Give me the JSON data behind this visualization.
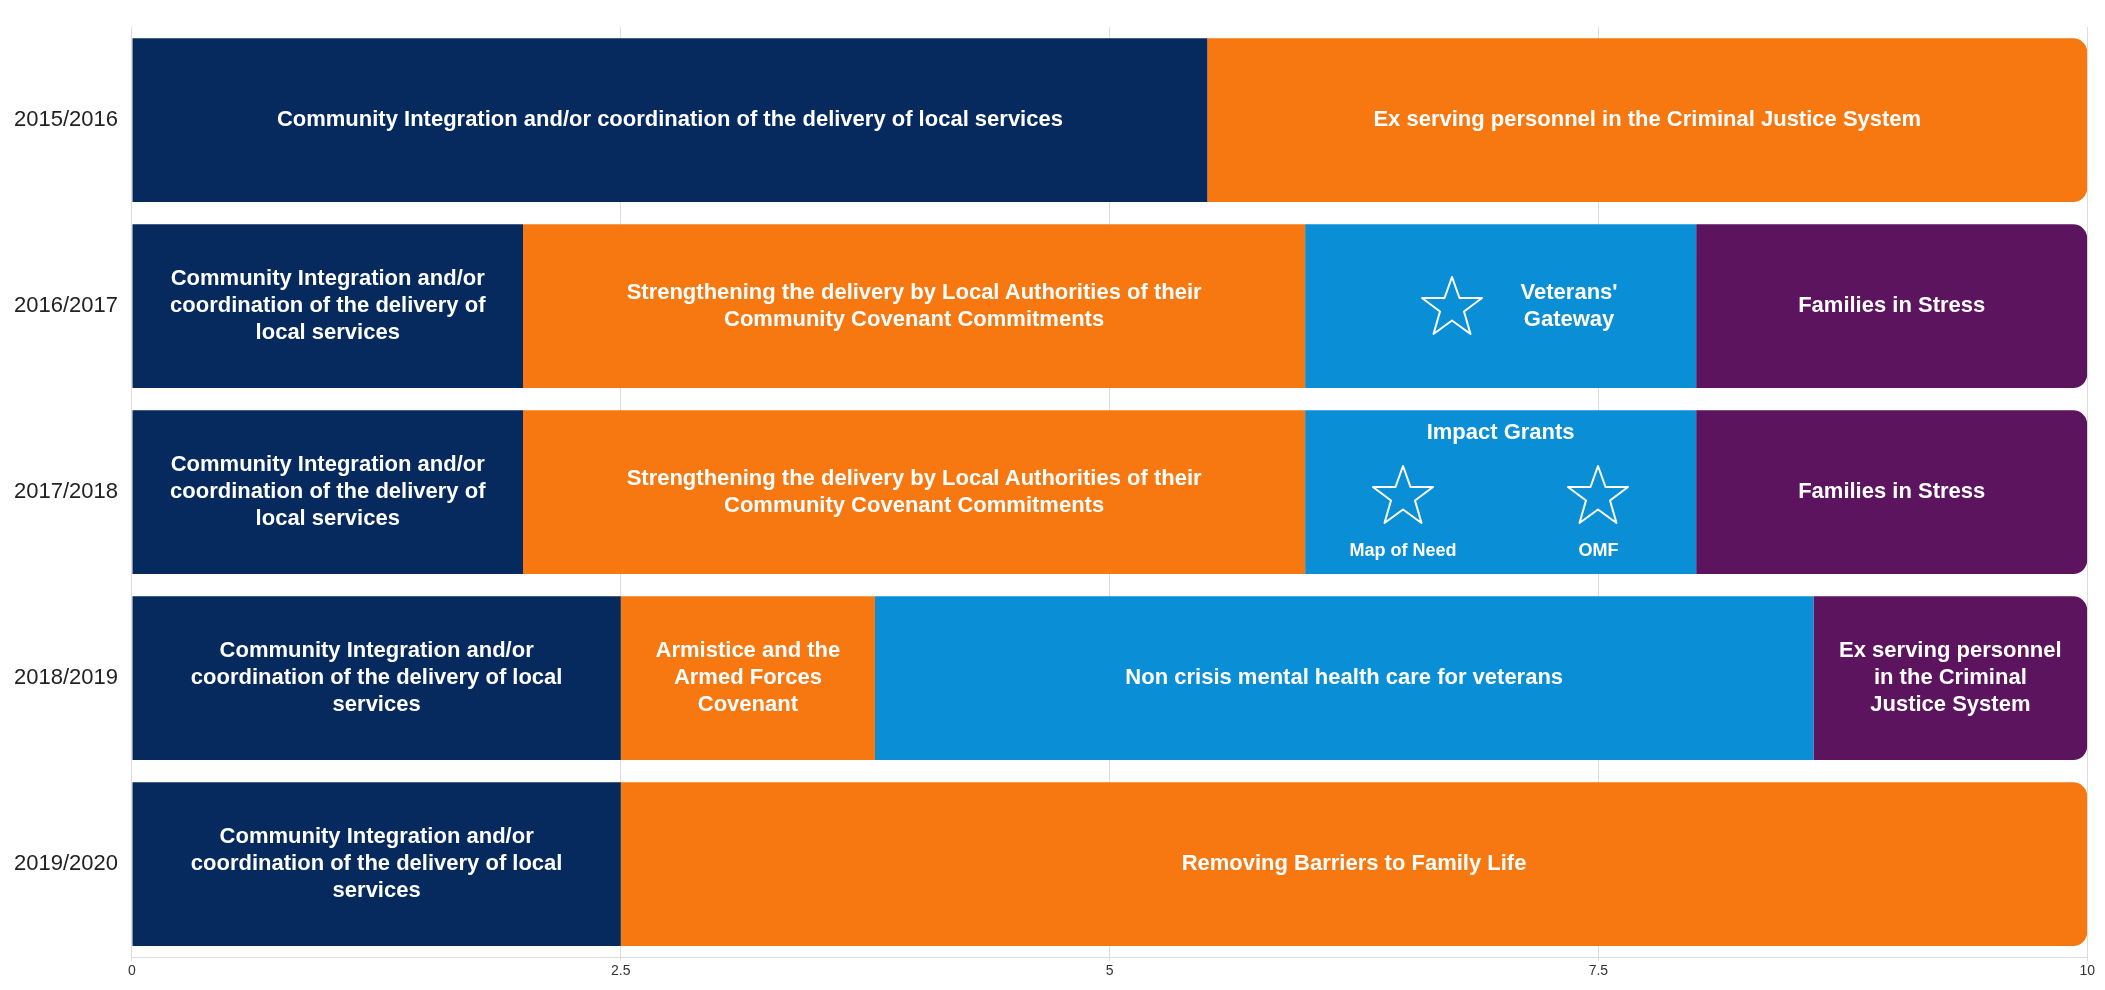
{
  "chart_data": {
    "type": "bar",
    "orientation": "horizontal",
    "stacked": true,
    "categories": [
      "2015/2016",
      "2016/2017",
      "2017/2018",
      "2018/2019",
      "2019/2020"
    ],
    "series": [
      {
        "color": "#062a5e",
        "values": [
          5.5,
          2,
          2,
          2.5,
          2.5
        ],
        "value_labels": [
          "Community Integration and/or coordination of the delivery of local services",
          "Community Integration and/or coordination of the delivery of local services",
          "Community Integration and/or coordination of the delivery of local services",
          "Community Integration and/or coordination of the delivery of local services",
          "Community Integration and/or coordination of the delivery of local services"
        ]
      },
      {
        "color": "#f77810",
        "values": [
          4.5,
          4,
          4,
          1.3,
          7.5
        ],
        "value_labels": [
          "Ex serving personnel in the Criminal Justice System",
          "Strengthening the delivery by Local Authorities of their Community Covenant Commitments",
          "Strengthening the delivery by Local Authorities of their Community Covenant Commitments",
          "Armistice and the Armed Forces Covenant",
          "Removing Barriers to Family Life"
        ]
      },
      {
        "color": "#0a8ed6",
        "values": [
          null,
          2,
          2,
          4.8,
          null
        ],
        "value_labels": [
          null,
          null,
          null,
          "Non crisis mental health care for veterans",
          null
        ]
      },
      {
        "color": "#5c145e",
        "values": [
          null,
          2,
          2,
          1.4,
          null
        ],
        "value_labels": [
          null,
          "Families in Stress",
          "Families in Stress",
          "Ex serving personnel in the Criminal Justice System",
          null
        ]
      }
    ],
    "annotations": [
      "Veterans' Gateway",
      "Impact Grants",
      "Map of Need",
      "OMF"
    ],
    "xlim": [
      0,
      10
    ],
    "xticks": [
      0,
      2.5,
      5,
      7.5,
      10
    ],
    "grid": "x",
    "legend": false
  }
}
